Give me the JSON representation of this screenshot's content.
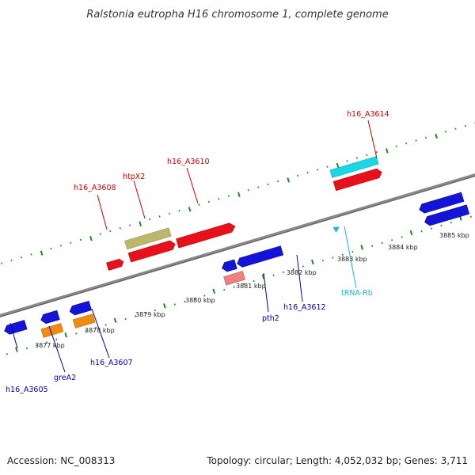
{
  "title": "Ralstonia eutropha H16 chromosome 1, complete genome",
  "footer": {
    "accession": "Accession: NC_008313",
    "summary": "Topology: circular; Length: 4,052,032 bp; Genes: 3,711"
  },
  "colors": {
    "backbone": "#8a8a8a",
    "tick": "#1e8a1e",
    "forward_gene": "#e8101a",
    "reverse_gene": "#1414d8",
    "grea": "#f08a10",
    "htpx": "#bdb76b",
    "trna": "#19d7e6",
    "pth": "#f08080",
    "label_red": "#cc0000",
    "label_blue": "#0000aa",
    "label_cyan": "#19b7d6"
  },
  "ticks": [
    "3877 kbp",
    "3878 kbp",
    "3879 kbp",
    "3880 kbp",
    "3881 kbp",
    "3882 kbp",
    "3883 kbp",
    "3884 kbp",
    "3885 kbp"
  ],
  "genes": [
    {
      "label": "h16_A3605",
      "color": "#0000aa"
    },
    {
      "label": "greA2",
      "color": "#0000aa"
    },
    {
      "label": "h16_A3607",
      "color": "#0000aa"
    },
    {
      "label": "h16_A3608",
      "color": "#cc0000"
    },
    {
      "label": "htpX2",
      "color": "#cc0000"
    },
    {
      "label": "h16_A3610",
      "color": "#cc0000"
    },
    {
      "label": "pth2",
      "color": "#0000aa"
    },
    {
      "label": "h16_A3612",
      "color": "#0000aa"
    },
    {
      "label": "tRNA-Rb",
      "color": "#19b7d6"
    },
    {
      "label": "h16_A3614",
      "color": "#cc0000"
    }
  ]
}
